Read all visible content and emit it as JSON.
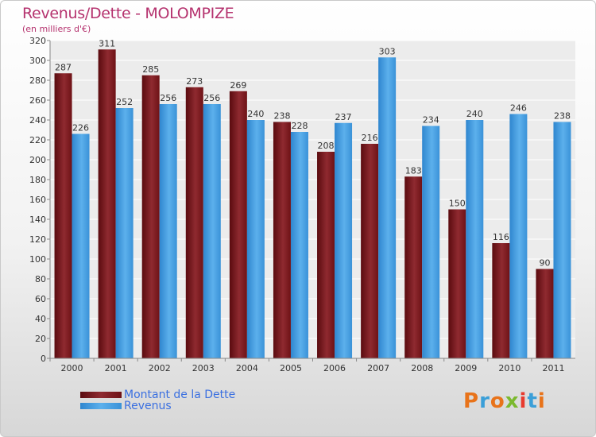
{
  "header": {
    "title": "Revenus/Dette - MOLOMPIZE",
    "subtitle": "(en milliers d'€)"
  },
  "legend": {
    "items": [
      {
        "label": "Montant de la Dette",
        "color": "#6e1216"
      },
      {
        "label": "Revenus",
        "color": "#3f97dc"
      }
    ]
  },
  "logo": {
    "text": "Proxiti",
    "colors": [
      "#e8731a",
      "#3b9fd8",
      "#e8731a",
      "#7bb92e",
      "#e83a2e",
      "#3b9fd8",
      "#e8731a"
    ]
  },
  "chart_data": {
    "type": "bar",
    "title": "Revenus/Dette - MOLOMPIZE",
    "ylabel": "(en milliers d'€)",
    "categories": [
      "2000",
      "2001",
      "2002",
      "2003",
      "2004",
      "2005",
      "2006",
      "2007",
      "2008",
      "2009",
      "2010",
      "2011"
    ],
    "ylim": [
      0,
      320
    ],
    "ytick_step": 20,
    "grid": true,
    "legend_position": "bottom-left",
    "series": [
      {
        "name": "Montant de la Dette",
        "color": "#6e1216",
        "values": [
          287,
          311,
          285,
          273,
          269,
          238,
          208,
          216,
          183,
          150,
          116,
          90
        ]
      },
      {
        "name": "Revenus",
        "color": "#3f97dc",
        "values": [
          226,
          252,
          256,
          256,
          240,
          228,
          237,
          303,
          234,
          240,
          246,
          238
        ]
      }
    ]
  }
}
